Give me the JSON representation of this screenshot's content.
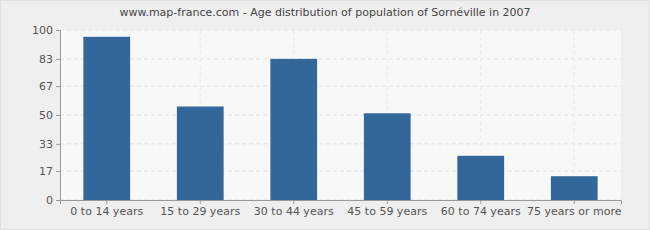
{
  "chart_data": {
    "type": "bar",
    "title": "www.map-france.com - Age distribution of population of Sornéville in 2007",
    "categories": [
      "0 to 14 years",
      "15 to 29 years",
      "30 to 44 years",
      "45 to 59 years",
      "60 to 74 years",
      "75 years or more"
    ],
    "values": [
      96,
      55,
      83,
      51,
      26,
      14
    ],
    "color": "#336699",
    "ylim": [
      0,
      100
    ],
    "yticks": [
      0,
      17,
      33,
      50,
      67,
      83,
      100
    ],
    "grid": true
  }
}
